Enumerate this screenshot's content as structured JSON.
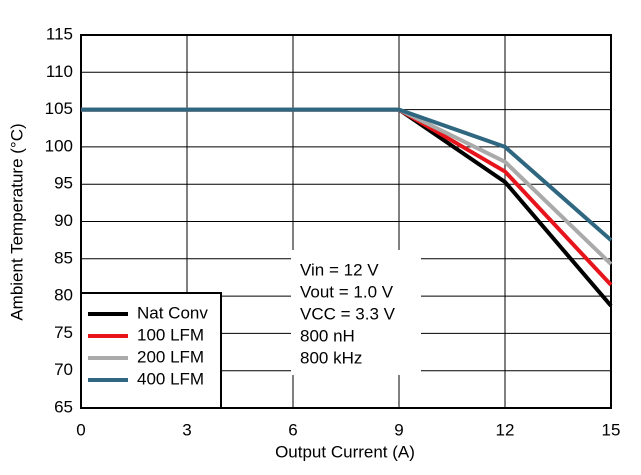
{
  "chart_data": {
    "type": "line",
    "xlabel": "Output Current (A)",
    "ylabel": "Ambient Temperature (°C)",
    "x": [
      0,
      9,
      12,
      15
    ],
    "series": [
      {
        "name": "Nat Conv",
        "color": "#000000",
        "values": [
          105,
          105,
          95.3,
          78.7
        ]
      },
      {
        "name": "100 LFM",
        "color": "#e8141c",
        "values": [
          105,
          105,
          96.7,
          81.5
        ]
      },
      {
        "name": "200 LFM",
        "color": "#aaaaaa",
        "values": [
          105,
          105,
          98,
          84.3
        ]
      },
      {
        "name": "400 LFM",
        "color": "#2f6781",
        "values": [
          105,
          105,
          100,
          87.5
        ]
      }
    ],
    "xlim": [
      0,
      15
    ],
    "xticks": [
      0,
      3,
      6,
      9,
      12,
      15
    ],
    "ylim": [
      65,
      115
    ],
    "yticks": [
      65,
      70,
      75,
      80,
      85,
      90,
      95,
      100,
      105,
      110,
      115
    ],
    "grid": true,
    "legend": "lower left",
    "annotation": [
      "Vin = 12 V",
      "Vout = 1.0 V",
      "VCC = 3.3 V",
      "800 nH",
      "800 kHz"
    ]
  }
}
